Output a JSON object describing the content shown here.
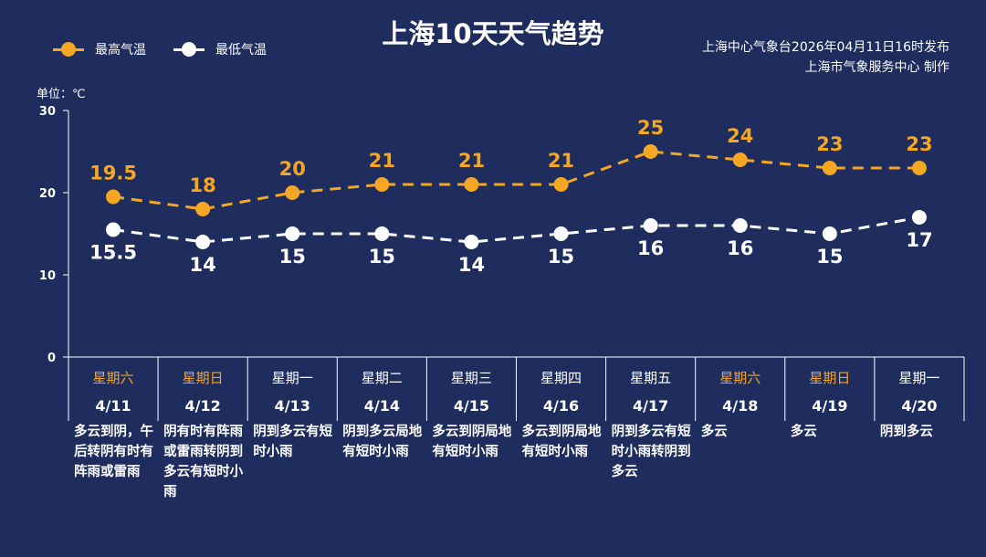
{
  "header": {
    "title": "上海10天天气趋势",
    "source_line1": "上海中心气象台2026年04月11日16时发布",
    "source_line2": "上海市气象服务中心 制作"
  },
  "unit_label": "单位：℃",
  "colors": {
    "background": "#1f2d5e",
    "high": "#f5a623",
    "low": "#ffffff",
    "axis": "#ffffff"
  },
  "chart_data": {
    "type": "line",
    "categories": [
      "4/11",
      "4/12",
      "4/13",
      "4/14",
      "4/15",
      "4/16",
      "4/17",
      "4/18",
      "4/19",
      "4/20"
    ],
    "series": [
      {
        "name": "最高气温",
        "values": [
          19.5,
          18,
          20,
          21,
          21,
          21,
          25,
          24,
          23,
          23
        ]
      },
      {
        "name": "最低气温",
        "values": [
          15.5,
          14,
          15,
          15,
          14,
          15,
          16,
          16,
          15,
          17
        ]
      }
    ],
    "ylim": [
      0,
      30
    ],
    "yticks": [
      0,
      10,
      20,
      30
    ],
    "data_labels": {
      "high": [
        "19.5",
        "18",
        "20",
        "21",
        "21",
        "21",
        "25",
        "24",
        "23",
        "23"
      ],
      "low": [
        "15.5",
        "14",
        "15",
        "15",
        "14",
        "15",
        "16",
        "16",
        "15",
        "17"
      ]
    },
    "legend_position": "top-left",
    "grid": false
  },
  "days": [
    {
      "weekday": "星期六",
      "date": "4/11",
      "weather": "多云到阴，午后转阴有时有阵雨或雷雨",
      "weekend": true
    },
    {
      "weekday": "星期日",
      "date": "4/12",
      "weather": "阴有时有阵雨或雷雨转阴到多云有短时小雨",
      "weekend": true
    },
    {
      "weekday": "星期一",
      "date": "4/13",
      "weather": "阴到多云有短时小雨",
      "weekend": false
    },
    {
      "weekday": "星期二",
      "date": "4/14",
      "weather": "阴到多云局地有短时小雨",
      "weekend": false
    },
    {
      "weekday": "星期三",
      "date": "4/15",
      "weather": "多云到阴局地有短时小雨",
      "weekend": false
    },
    {
      "weekday": "星期四",
      "date": "4/16",
      "weather": "多云到阴局地有短时小雨",
      "weekend": false
    },
    {
      "weekday": "星期五",
      "date": "4/17",
      "weather": "阴到多云有短时小雨转阴到多云",
      "weekend": false
    },
    {
      "weekday": "星期六",
      "date": "4/18",
      "weather": "多云",
      "weekend": true
    },
    {
      "weekday": "星期日",
      "date": "4/19",
      "weather": "多云",
      "weekend": true
    },
    {
      "weekday": "星期一",
      "date": "4/20",
      "weather": "阴到多云",
      "weekend": false
    }
  ]
}
